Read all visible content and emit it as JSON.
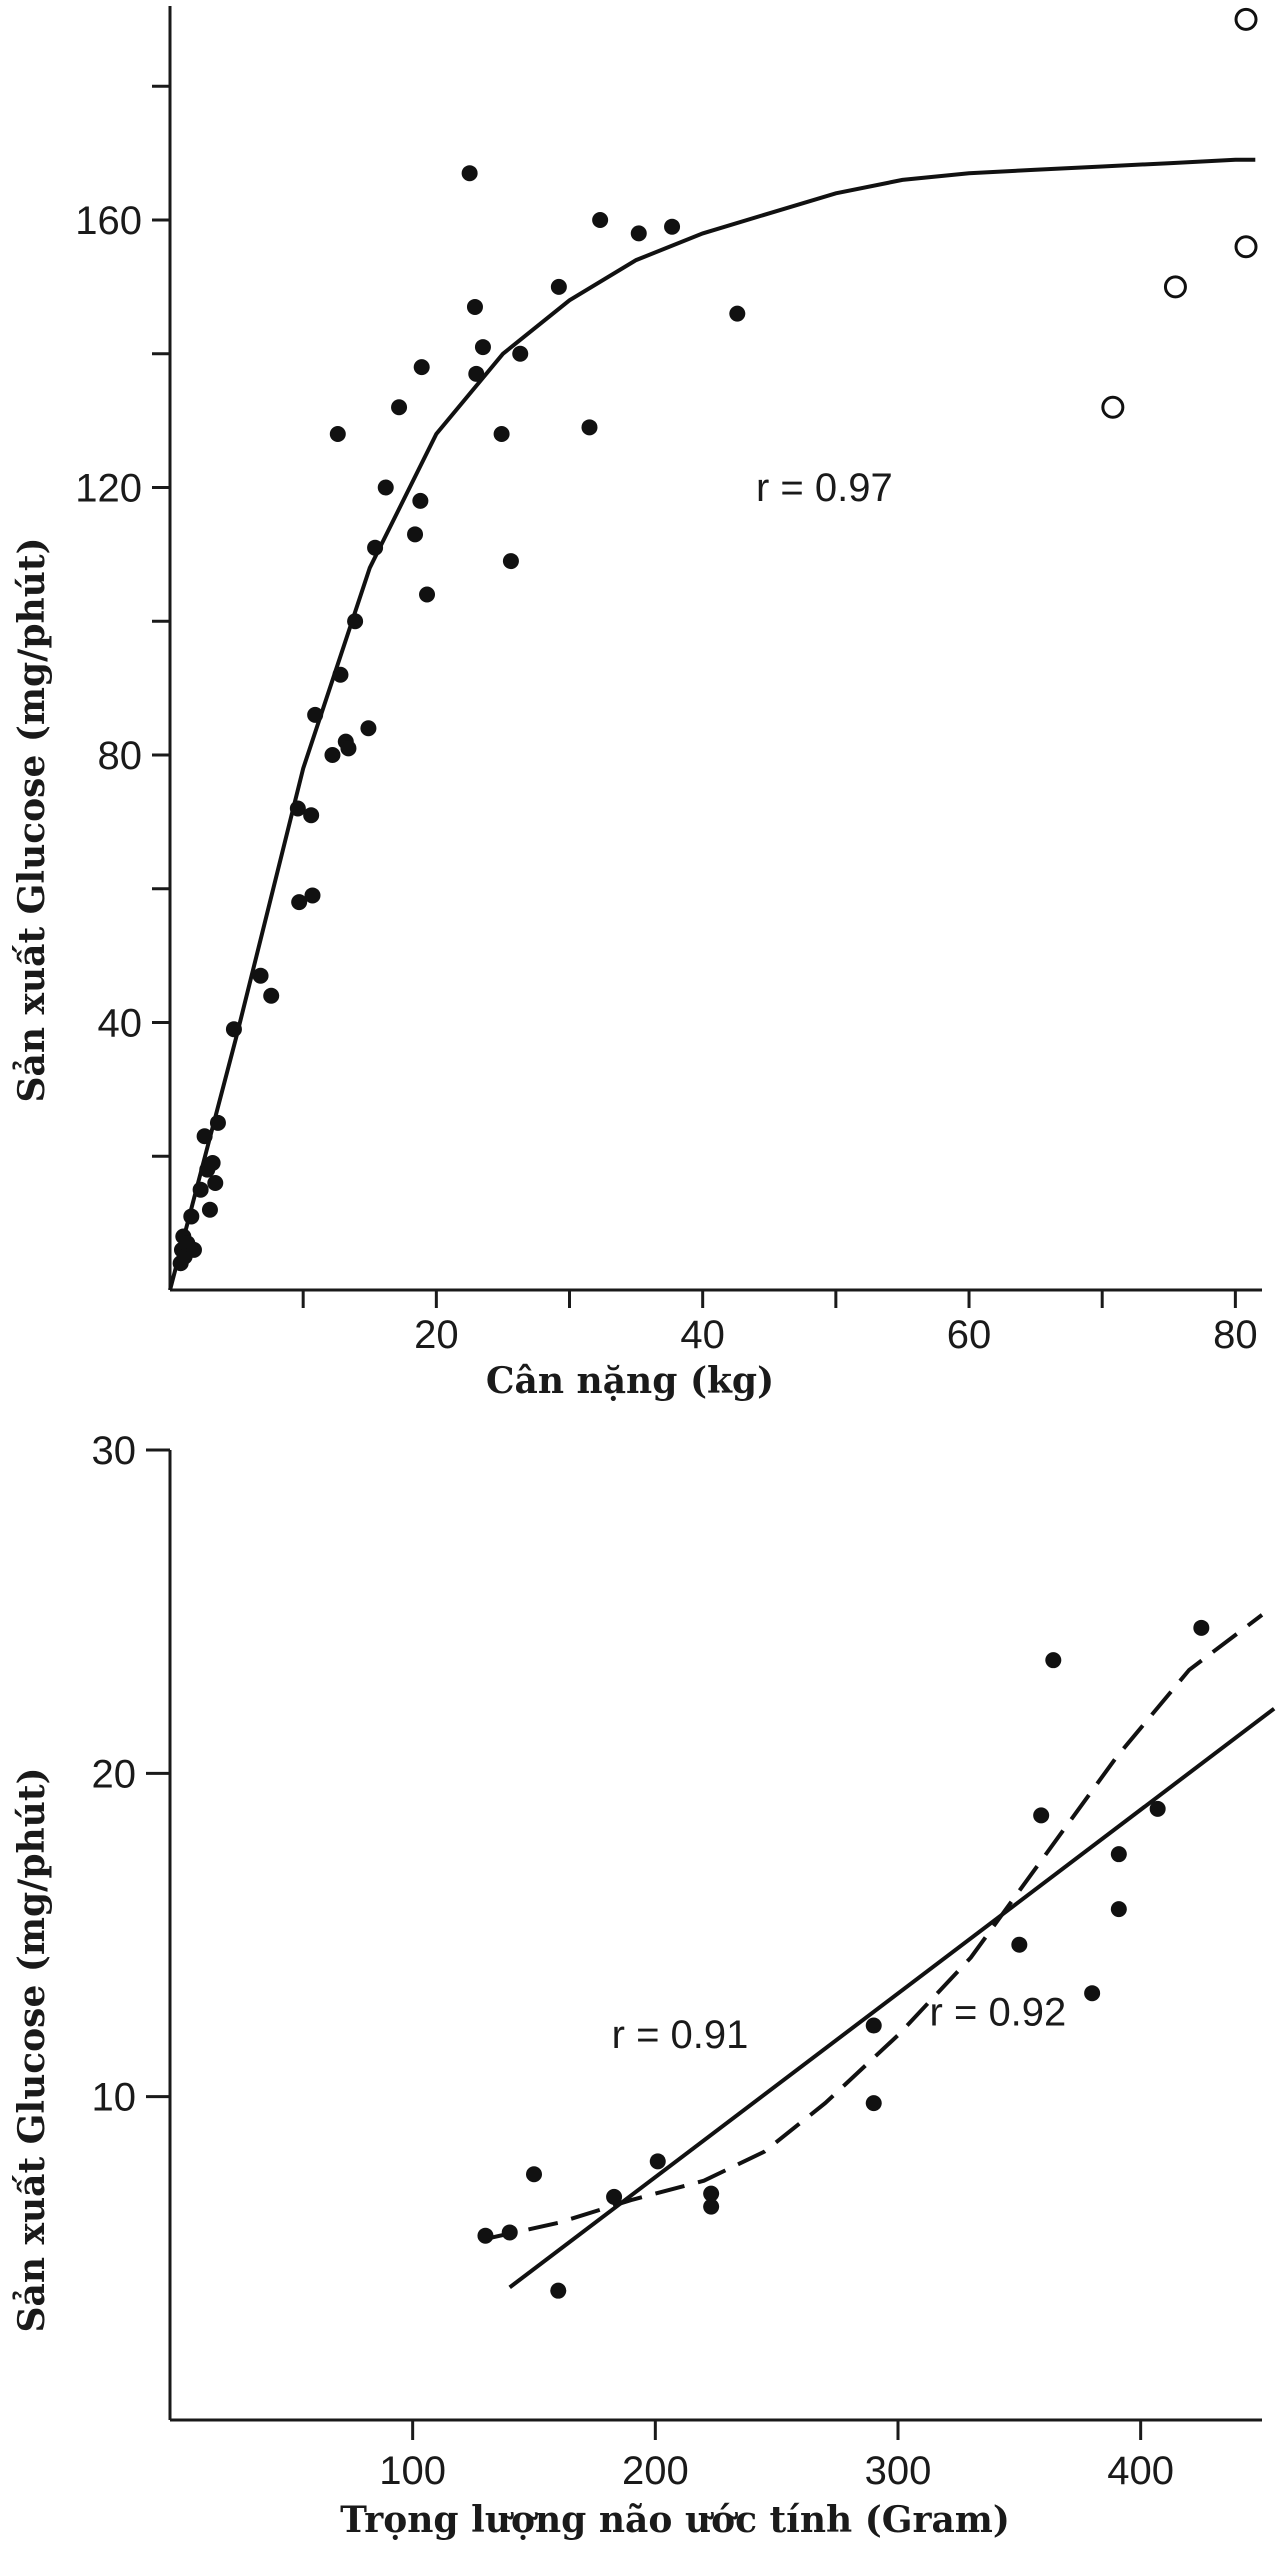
{
  "chart_data": [
    {
      "type": "scatter",
      "xlabel": "Cân nặng (kg)",
      "ylabel": "Sản xuất Glucose (mg/phút)",
      "xlim": [
        0,
        82
      ],
      "ylim": [
        0,
        192
      ],
      "x_ticks": [
        20,
        40,
        60,
        80
      ],
      "x_minor_ticks": [
        10,
        30,
        50,
        70
      ],
      "y_ticks": [
        40,
        80,
        120,
        160
      ],
      "y_minor_ticks": [
        20,
        60,
        100,
        140,
        180
      ],
      "annotations": [
        {
          "text": "r = 0.97",
          "x": 44,
          "y": 118
        }
      ],
      "series": [
        {
          "marker": "filled-circle",
          "points": [
            [
              0.8,
              4
            ],
            [
              0.9,
              6
            ],
            [
              1.0,
              8
            ],
            [
              1.1,
              5
            ],
            [
              1.3,
              7
            ],
            [
              1.6,
              11
            ],
            [
              1.8,
              6
            ],
            [
              2.3,
              15
            ],
            [
              2.6,
              23
            ],
            [
              2.8,
              18
            ],
            [
              3.0,
              12
            ],
            [
              3.2,
              19
            ],
            [
              3.4,
              16
            ],
            [
              3.6,
              25
            ],
            [
              4.8,
              39
            ],
            [
              6.8,
              47
            ],
            [
              7.6,
              44
            ],
            [
              9.6,
              72
            ],
            [
              9.7,
              58
            ],
            [
              10.6,
              71
            ],
            [
              10.7,
              59
            ],
            [
              10.9,
              86
            ],
            [
              12.2,
              80
            ],
            [
              12.6,
              128
            ],
            [
              12.8,
              92
            ],
            [
              13.2,
              82
            ],
            [
              13.4,
              81
            ],
            [
              13.9,
              100
            ],
            [
              14.9,
              84
            ],
            [
              15.4,
              111
            ],
            [
              16.2,
              120
            ],
            [
              17.2,
              132
            ],
            [
              18.4,
              113
            ],
            [
              18.8,
              118
            ],
            [
              18.9,
              138
            ],
            [
              19.3,
              104
            ],
            [
              22.5,
              167
            ],
            [
              22.9,
              147
            ],
            [
              23.0,
              137
            ],
            [
              23.5,
              141
            ],
            [
              24.9,
              128
            ],
            [
              25.6,
              109
            ],
            [
              26.3,
              140
            ],
            [
              29.2,
              150
            ],
            [
              31.5,
              129
            ],
            [
              32.3,
              160
            ],
            [
              35.2,
              158
            ],
            [
              37.7,
              159
            ],
            [
              42.6,
              146
            ]
          ]
        },
        {
          "marker": "open-circle",
          "points": [
            [
              70.8,
              132
            ],
            [
              75.5,
              150
            ],
            [
              80.8,
              156
            ],
            [
              80.8,
              190
            ]
          ]
        }
      ],
      "fit_curve": [
        [
          0,
          0
        ],
        [
          5,
          38
        ],
        [
          10,
          78
        ],
        [
          15,
          108
        ],
        [
          20,
          128
        ],
        [
          25,
          140
        ],
        [
          30,
          148
        ],
        [
          35,
          154
        ],
        [
          40,
          158
        ],
        [
          45,
          161
        ],
        [
          50,
          164
        ],
        [
          55,
          166
        ],
        [
          60,
          167
        ],
        [
          65,
          167.5
        ],
        [
          70,
          168
        ],
        [
          75,
          168.5
        ],
        [
          80,
          169
        ],
        [
          81.5,
          169
        ]
      ]
    },
    {
      "type": "scatter",
      "xlabel": "Trọng lượng não ước tính (Gram)",
      "ylabel": "Sản xuất Glucose (mg/phút)",
      "xlim": [
        0,
        450
      ],
      "ylim": [
        0,
        30
      ],
      "x_ticks": [
        100,
        200,
        300,
        400
      ],
      "y_ticks": [
        10,
        20,
        30
      ],
      "annotations": [
        {
          "text": "r = 0.91",
          "x": 182,
          "y": 11.5
        },
        {
          "text": "r = 0.92",
          "x": 313,
          "y": 12.2
        }
      ],
      "series": [
        {
          "marker": "filled-circle",
          "points": [
            [
              130,
              5.7
            ],
            [
              140,
              5.8
            ],
            [
              150,
              7.6
            ],
            [
              160,
              4.0
            ],
            [
              183,
              6.9
            ],
            [
              201,
              8.0
            ],
            [
              223,
              7.0
            ],
            [
              223,
              6.6
            ],
            [
              290,
              12.2
            ],
            [
              290,
              9.8
            ],
            [
              350,
              14.7
            ],
            [
              359,
              18.7
            ],
            [
              364,
              23.5
            ],
            [
              380,
              13.2
            ],
            [
              391,
              17.5
            ],
            [
              391,
              15.8
            ],
            [
              407,
              18.9
            ],
            [
              425,
              24.5
            ]
          ]
        }
      ],
      "linear_fit": [
        [
          140,
          4.1
        ],
        [
          455,
          22.0
        ]
      ],
      "curve_fit": [
        [
          130,
          5.6
        ],
        [
          160,
          6.1
        ],
        [
          190,
          6.8
        ],
        [
          220,
          7.4
        ],
        [
          245,
          8.3
        ],
        [
          270,
          9.8
        ],
        [
          300,
          11.9
        ],
        [
          330,
          14.3
        ],
        [
          360,
          17.4
        ],
        [
          390,
          20.5
        ],
        [
          420,
          23.2
        ],
        [
          450,
          24.9
        ]
      ]
    }
  ]
}
